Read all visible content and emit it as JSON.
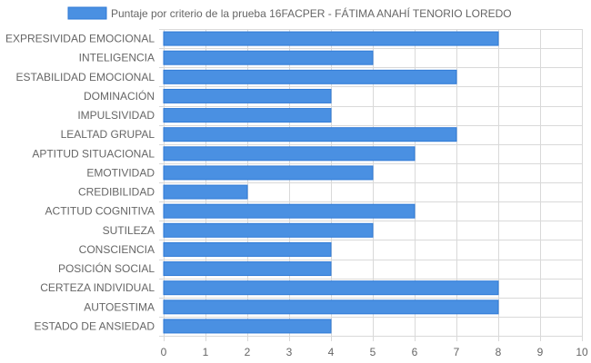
{
  "chart_data": {
    "type": "bar",
    "orientation": "horizontal",
    "legend_position": "top",
    "grid": true,
    "xlim": [
      0,
      10
    ],
    "x_ticks": [
      0,
      1,
      2,
      3,
      4,
      5,
      6,
      7,
      8,
      9,
      10
    ],
    "categories": [
      "EXPRESIVIDAD EMOCIONAL",
      "INTELIGENCIA",
      "ESTABILIDAD EMOCIONAL",
      "DOMINACIÓN",
      "IMPULSIVIDAD",
      "LEALTAD GRUPAL",
      "APTITUD SITUACIONAL",
      "EMOTIVIDAD",
      "CREDIBILIDAD",
      "ACTITUD COGNITIVA",
      "SUTILEZA",
      "CONSCIENCIA",
      "POSICIÓN SOCIAL",
      "CERTEZA INDIVIDUAL",
      "AUTOESTIMA",
      "ESTADO DE ANSIEDAD"
    ],
    "series": [
      {
        "name": "Puntaje por criterio de la prueba 16FACPER - FÁTIMA ANAHÍ TENORIO LOREDO",
        "color": "#4a90e2",
        "border_color": "#2f7ad6",
        "values": [
          8,
          5,
          7,
          4,
          4,
          7,
          6,
          5,
          2,
          6,
          5,
          4,
          4,
          8,
          8,
          4
        ]
      }
    ],
    "colors": {
      "grid": "#d9d9d9",
      "axis_text": "#666666"
    }
  }
}
